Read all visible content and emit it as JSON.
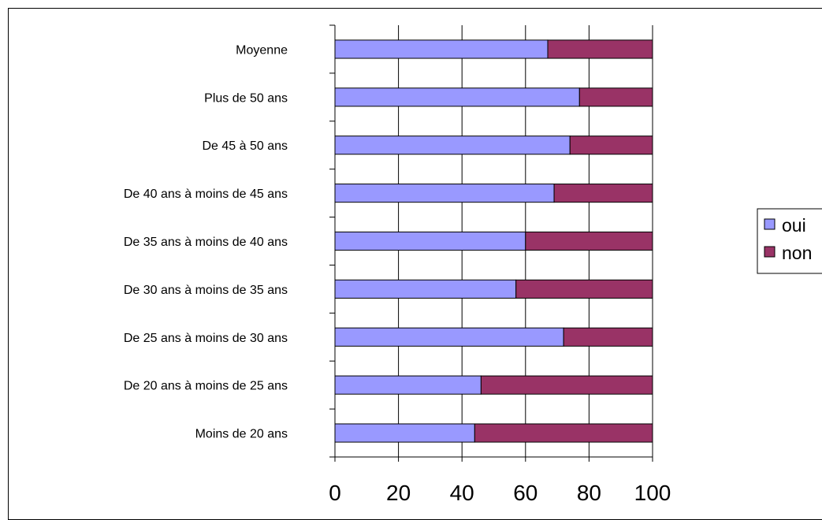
{
  "chart_data": {
    "type": "bar",
    "orientation": "horizontal",
    "stacked": true,
    "categories": [
      "Moyenne",
      "Plus de 50 ans",
      "De 45 à 50 ans",
      "De 40 ans à moins de 45 ans",
      "De 35 ans à moins de 40 ans",
      "De 30 ans à moins de 35 ans",
      "De 25 ans à moins de 30 ans",
      "De 20 ans à moins de 25 ans",
      "Moins de 20 ans"
    ],
    "series": [
      {
        "name": "oui",
        "color": "#9999ff",
        "values": [
          67,
          77,
          74,
          69,
          60,
          57,
          72,
          46,
          44
        ]
      },
      {
        "name": "non",
        "color": "#993366",
        "values": [
          33,
          23,
          26,
          31,
          40,
          43,
          28,
          54,
          56
        ]
      }
    ],
    "xlim": [
      0,
      100
    ],
    "x_ticks": [
      "0",
      "20",
      "40",
      "60",
      "80",
      "100"
    ],
    "grid": true,
    "legend_position": "right"
  }
}
